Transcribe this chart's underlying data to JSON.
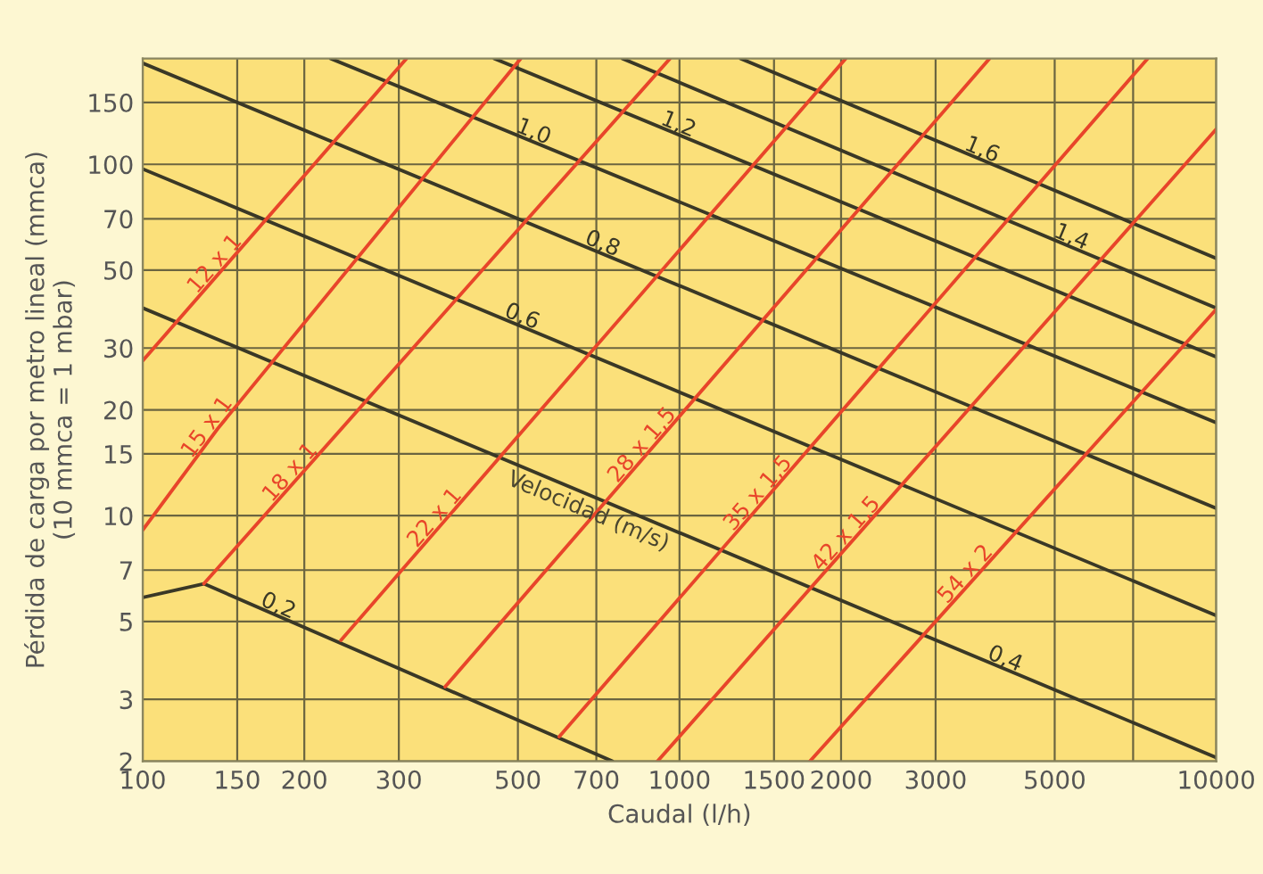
{
  "chart_data": {
    "type": "line",
    "xlabel": "Caudal (l/h)",
    "ylabel": "Pérdida de carga por metro lineal (mmca)\n(10 mmca = 1 mbar)",
    "log": "xy",
    "grid": true,
    "marker": "none",
    "line_style": "solid",
    "xlim": [
      100,
      10000
    ],
    "ylim": [
      2,
      200
    ],
    "xticks": [
      100,
      150,
      200,
      300,
      500,
      700,
      1000,
      1500,
      2000,
      3000,
      5000,
      {
        "value": 7000,
        "label": null
      },
      10000
    ],
    "yticks": [
      2,
      3,
      5,
      7,
      10,
      15,
      20,
      30,
      50,
      70,
      100,
      150
    ],
    "series": [
      {
        "name": "0,2",
        "color": "#3a3826",
        "x": [
          100,
          130,
          750
        ],
        "values": [
          5.85,
          6.4,
          2
        ]
      },
      {
        "name": "0,4",
        "color": "#3a3826",
        "x": [
          100,
          10000
        ],
        "values": [
          39,
          2.05
        ]
      },
      {
        "name": "0,6",
        "color": "#3a3826",
        "x": [
          100,
          10000
        ],
        "values": [
          97,
          5.2
        ]
      },
      {
        "name": "0,8",
        "color": "#3a3826",
        "x": [
          100,
          10000
        ],
        "values": [
          194,
          10.5
        ]
      },
      {
        "name": "1,0",
        "color": "#3a3826",
        "x": [
          224,
          10000
        ],
        "values": [
          200,
          18.4
        ]
      },
      {
        "name": "1,2",
        "color": "#3a3826",
        "x": [
          452,
          10000
        ],
        "values": [
          200,
          28.3
        ]
      },
      {
        "name": "1,4",
        "color": "#3a3826",
        "x": [
          783,
          10000
        ],
        "values": [
          200,
          39
        ]
      },
      {
        "name": "1,6",
        "color": "#3a3826",
        "x": [
          1300,
          10000
        ],
        "values": [
          200,
          54
        ]
      },
      {
        "name": "12 x 1",
        "color": "#e8452a",
        "x": [
          100,
          310
        ],
        "values": [
          27.6,
          200
        ]
      },
      {
        "name": "15 x 1",
        "color": "#e8452a",
        "x": [
          100,
          138,
          506
        ],
        "values": [
          9.1,
          17.7,
          200
        ]
      },
      {
        "name": "18 x 1",
        "color": "#e8452a",
        "x": [
          130,
          960
        ],
        "values": [
          6.4,
          200
        ]
      },
      {
        "name": "22 x 1",
        "color": "#e8452a",
        "x": [
          234,
          2040
        ],
        "values": [
          4.42,
          200
        ]
      },
      {
        "name": "28 x 1,5",
        "color": "#e8452a",
        "x": [
          366,
          3780
        ],
        "values": [
          3.26,
          200
        ]
      },
      {
        "name": "35 x 1,5",
        "color": "#e8452a",
        "x": [
          597,
          7450
        ],
        "values": [
          2.35,
          200
        ]
      },
      {
        "name": "42 x 1,5",
        "color": "#e8452a",
        "x": [
          910,
          10000
        ],
        "values": [
          2,
          126
        ]
      },
      {
        "name": "54 x 2",
        "color": "#e8452a",
        "x": [
          1750,
          10000
        ],
        "values": [
          2,
          38.7
        ]
      }
    ],
    "annotations": [
      "Velocidad (m/s)"
    ]
  }
}
